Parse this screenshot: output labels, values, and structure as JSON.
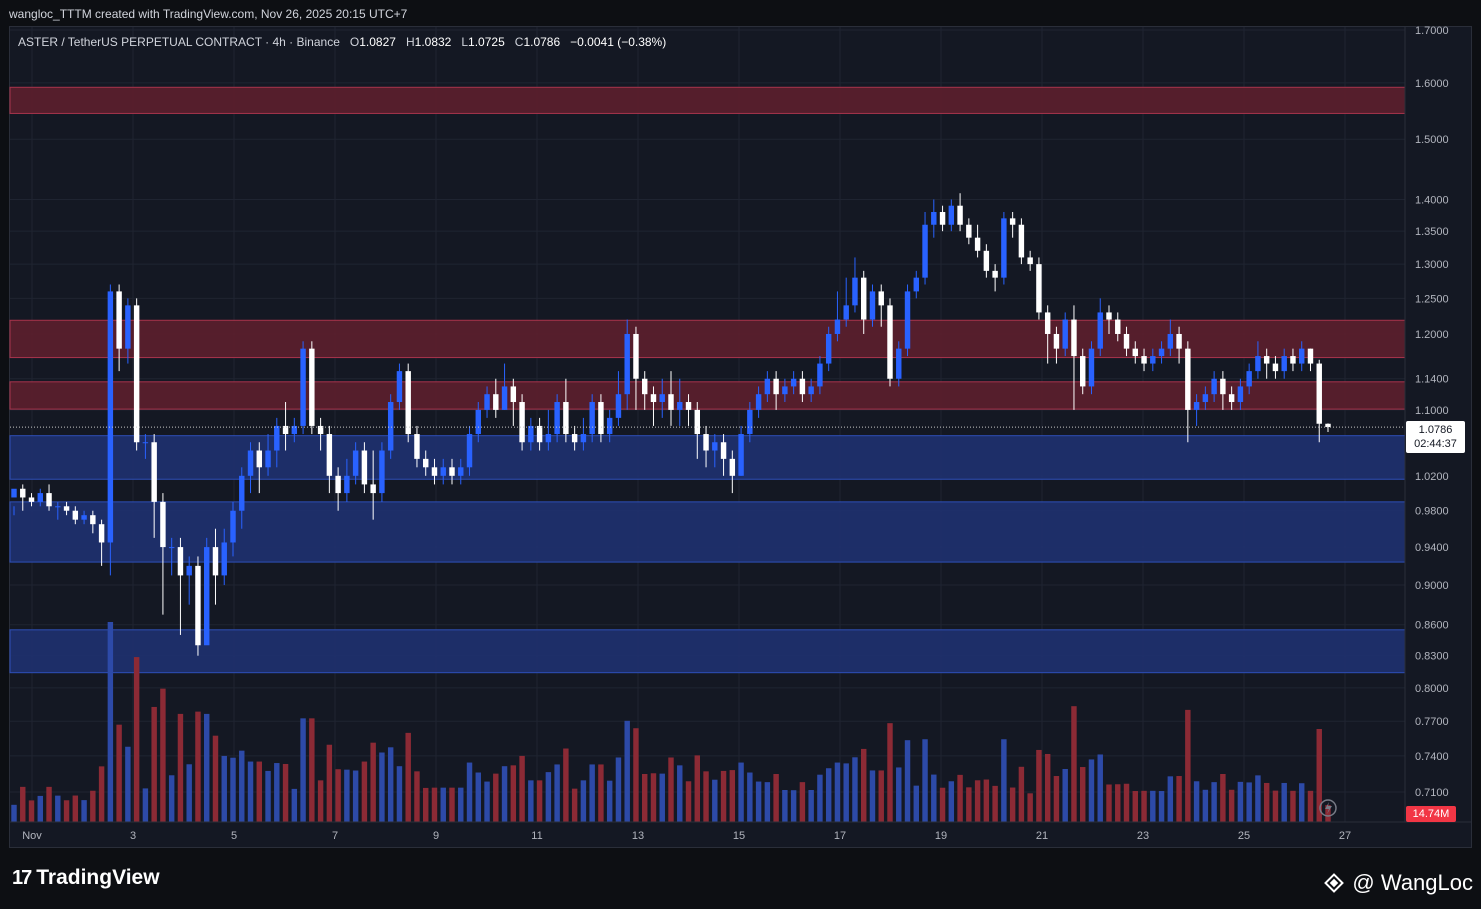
{
  "header": {
    "attribution": "wangloc_TTTM created with TradingView.com, Nov 26, 2025 20:15 UTC+7"
  },
  "legend": {
    "symbol": "ASTER / TetherUS PERPETUAL CONTRACT · 4h · Binance",
    "o_label": "O",
    "o_value": "1.0827",
    "h_label": "H",
    "h_value": "1.0832",
    "l_label": "L",
    "l_value": "1.0725",
    "c_label": "C",
    "c_value": "1.0786",
    "change": "−0.0041 (−0.38%)"
  },
  "price_tag": {
    "price": "1.0786",
    "countdown": "02:44:37"
  },
  "volume_tag": "14.74M",
  "footer": {
    "brand": "TradingView",
    "author": "@ WangLoc"
  },
  "colors": {
    "background": "#141823",
    "bull": "#2962ff",
    "bear": "#ffffff",
    "resistance_zone": "#5c1f2e",
    "support_zone": "#1e3170",
    "volume_bull": "#2d4aa8",
    "volume_bear": "#8c2a35"
  },
  "chart_data": {
    "type": "candlestick",
    "timeframe": "4h",
    "y_ticks": [
      "1.7000",
      "1.6000",
      "1.5000",
      "1.4000",
      "1.3500",
      "1.3000",
      "1.2500",
      "1.2000",
      "1.1400",
      "1.1000",
      "1.0200",
      "0.9800",
      "0.9400",
      "0.9000",
      "0.8600",
      "0.8300",
      "0.8000",
      "0.7700",
      "0.7400",
      "0.7100"
    ],
    "x_ticks": [
      "Nov",
      "3",
      "5",
      "7",
      "9",
      "11",
      "13",
      "15",
      "17",
      "19",
      "21",
      "23",
      "25",
      "27"
    ],
    "y_scale": "log",
    "last_price": 1.0786,
    "zones": [
      {
        "kind": "resistance",
        "low": 1.545,
        "high": 1.592
      },
      {
        "kind": "resistance",
        "low": 1.168,
        "high": 1.219
      },
      {
        "kind": "resistance",
        "low": 1.101,
        "high": 1.136
      },
      {
        "kind": "support",
        "low": 1.016,
        "high": 1.068
      },
      {
        "kind": "support",
        "low": 0.924,
        "high": 0.99
      },
      {
        "kind": "support",
        "low": 0.814,
        "high": 0.855
      }
    ],
    "candles": [
      [
        0.995,
        1.005,
        0.985,
        0.975
      ],
      [
        1.005,
        0.995,
        1.01,
        0.98
      ],
      [
        0.995,
        0.99,
        1.0,
        0.985
      ],
      [
        0.99,
        1.0,
        1.005,
        0.985
      ],
      [
        1.0,
        0.985,
        1.01,
        0.98
      ],
      [
        0.985,
        0.985,
        0.99,
        0.97
      ],
      [
        0.985,
        0.98,
        0.99,
        0.975
      ],
      [
        0.98,
        0.97,
        0.985,
        0.965
      ],
      [
        0.97,
        0.975,
        0.98,
        0.965
      ],
      [
        0.975,
        0.965,
        0.98,
        0.955
      ],
      [
        0.965,
        0.945,
        0.97,
        0.92
      ],
      [
        0.945,
        1.26,
        1.27,
        0.91
      ],
      [
        1.26,
        1.18,
        1.27,
        1.15
      ],
      [
        1.18,
        1.24,
        1.25,
        1.16
      ],
      [
        1.24,
        1.06,
        1.25,
        1.05
      ],
      [
        1.06,
        1.06,
        1.07,
        1.04
      ],
      [
        1.06,
        0.99,
        1.07,
        0.95
      ],
      [
        0.99,
        0.94,
        1.0,
        0.87
      ],
      [
        0.94,
        0.94,
        0.95,
        0.91
      ],
      [
        0.94,
        0.91,
        0.95,
        0.85
      ],
      [
        0.91,
        0.92,
        0.93,
        0.88
      ],
      [
        0.92,
        0.84,
        0.93,
        0.83
      ],
      [
        0.84,
        0.94,
        0.95,
        0.85
      ],
      [
        0.94,
        0.91,
        0.96,
        0.88
      ],
      [
        0.91,
        0.945,
        0.96,
        0.9
      ],
      [
        0.945,
        0.98,
        0.99,
        0.93
      ],
      [
        0.98,
        1.02,
        1.03,
        0.96
      ],
      [
        1.02,
        1.05,
        1.06,
        1.0
      ],
      [
        1.05,
        1.03,
        1.06,
        1.0
      ],
      [
        1.03,
        1.05,
        1.07,
        1.02
      ],
      [
        1.05,
        1.08,
        1.09,
        1.03
      ],
      [
        1.08,
        1.07,
        1.11,
        1.05
      ],
      [
        1.07,
        1.08,
        1.09,
        1.06
      ],
      [
        1.08,
        1.18,
        1.19,
        1.07
      ],
      [
        1.18,
        1.08,
        1.19,
        1.07
      ],
      [
        1.08,
        1.07,
        1.09,
        1.05
      ],
      [
        1.07,
        1.02,
        1.08,
        1.0
      ],
      [
        1.02,
        1.0,
        1.03,
        0.98
      ],
      [
        1.0,
        1.02,
        1.04,
        0.99
      ],
      [
        1.02,
        1.05,
        1.06,
        1.01
      ],
      [
        1.05,
        1.01,
        1.06,
        1.0
      ],
      [
        1.01,
        1.0,
        1.05,
        0.97
      ],
      [
        1.0,
        1.05,
        1.06,
        0.99
      ],
      [
        1.05,
        1.11,
        1.12,
        1.04
      ],
      [
        1.11,
        1.15,
        1.16,
        1.1
      ],
      [
        1.15,
        1.07,
        1.16,
        1.06
      ],
      [
        1.07,
        1.04,
        1.08,
        1.03
      ],
      [
        1.04,
        1.03,
        1.05,
        1.02
      ],
      [
        1.03,
        1.02,
        1.04,
        1.01
      ],
      [
        1.02,
        1.03,
        1.04,
        1.01
      ],
      [
        1.03,
        1.02,
        1.04,
        1.01
      ],
      [
        1.02,
        1.03,
        1.04,
        1.01
      ],
      [
        1.03,
        1.07,
        1.08,
        1.02
      ],
      [
        1.07,
        1.1,
        1.11,
        1.06
      ],
      [
        1.1,
        1.12,
        1.13,
        1.09
      ],
      [
        1.12,
        1.1,
        1.14,
        1.09
      ],
      [
        1.1,
        1.13,
        1.16,
        1.1
      ],
      [
        1.13,
        1.11,
        1.14,
        1.08
      ],
      [
        1.11,
        1.06,
        1.12,
        1.05
      ],
      [
        1.06,
        1.08,
        1.09,
        1.05
      ],
      [
        1.08,
        1.06,
        1.09,
        1.05
      ],
      [
        1.06,
        1.07,
        1.1,
        1.05
      ],
      [
        1.07,
        1.11,
        1.12,
        1.06
      ],
      [
        1.11,
        1.07,
        1.14,
        1.06
      ],
      [
        1.07,
        1.06,
        1.08,
        1.05
      ],
      [
        1.06,
        1.07,
        1.09,
        1.05
      ],
      [
        1.07,
        1.11,
        1.12,
        1.06
      ],
      [
        1.11,
        1.07,
        1.12,
        1.06
      ],
      [
        1.07,
        1.09,
        1.1,
        1.06
      ],
      [
        1.09,
        1.12,
        1.15,
        1.08
      ],
      [
        1.12,
        1.2,
        1.22,
        1.1
      ],
      [
        1.2,
        1.14,
        1.21,
        1.1
      ],
      [
        1.14,
        1.12,
        1.15,
        1.1
      ],
      [
        1.12,
        1.11,
        1.13,
        1.08
      ],
      [
        1.11,
        1.12,
        1.14,
        1.09
      ],
      [
        1.12,
        1.1,
        1.15,
        1.08
      ],
      [
        1.1,
        1.11,
        1.14,
        1.08
      ],
      [
        1.11,
        1.1,
        1.12,
        1.08
      ],
      [
        1.1,
        1.07,
        1.11,
        1.04
      ],
      [
        1.07,
        1.05,
        1.08,
        1.03
      ],
      [
        1.05,
        1.06,
        1.07,
        1.03
      ],
      [
        1.06,
        1.04,
        1.07,
        1.02
      ],
      [
        1.04,
        1.02,
        1.05,
        1.0
      ],
      [
        1.02,
        1.07,
        1.08,
        1.02
      ],
      [
        1.07,
        1.1,
        1.11,
        1.06
      ],
      [
        1.1,
        1.12,
        1.13,
        1.09
      ],
      [
        1.12,
        1.14,
        1.15,
        1.11
      ],
      [
        1.14,
        1.12,
        1.15,
        1.1
      ],
      [
        1.12,
        1.13,
        1.14,
        1.11
      ],
      [
        1.13,
        1.14,
        1.15,
        1.12
      ],
      [
        1.14,
        1.12,
        1.15,
        1.11
      ],
      [
        1.12,
        1.13,
        1.14,
        1.11
      ],
      [
        1.13,
        1.16,
        1.17,
        1.12
      ],
      [
        1.16,
        1.2,
        1.21,
        1.15
      ],
      [
        1.2,
        1.22,
        1.26,
        1.19
      ],
      [
        1.22,
        1.24,
        1.28,
        1.21
      ],
      [
        1.24,
        1.28,
        1.31,
        1.23
      ],
      [
        1.28,
        1.22,
        1.29,
        1.2
      ],
      [
        1.22,
        1.26,
        1.27,
        1.21
      ],
      [
        1.26,
        1.24,
        1.27,
        1.21
      ],
      [
        1.24,
        1.14,
        1.25,
        1.13
      ],
      [
        1.14,
        1.18,
        1.19,
        1.13
      ],
      [
        1.18,
        1.26,
        1.27,
        1.17
      ],
      [
        1.26,
        1.28,
        1.29,
        1.25
      ],
      [
        1.28,
        1.36,
        1.38,
        1.27
      ],
      [
        1.36,
        1.38,
        1.4,
        1.34
      ],
      [
        1.38,
        1.36,
        1.39,
        1.35
      ],
      [
        1.36,
        1.39,
        1.4,
        1.35
      ],
      [
        1.39,
        1.36,
        1.41,
        1.35
      ],
      [
        1.36,
        1.34,
        1.37,
        1.33
      ],
      [
        1.34,
        1.32,
        1.36,
        1.31
      ],
      [
        1.32,
        1.29,
        1.33,
        1.28
      ],
      [
        1.29,
        1.28,
        1.3,
        1.26
      ],
      [
        1.28,
        1.37,
        1.38,
        1.27
      ],
      [
        1.37,
        1.36,
        1.38,
        1.34
      ],
      [
        1.36,
        1.31,
        1.37,
        1.3
      ],
      [
        1.31,
        1.3,
        1.32,
        1.29
      ],
      [
        1.3,
        1.23,
        1.31,
        1.22
      ],
      [
        1.23,
        1.2,
        1.24,
        1.16
      ],
      [
        1.2,
        1.18,
        1.21,
        1.16
      ],
      [
        1.18,
        1.22,
        1.23,
        1.17
      ],
      [
        1.22,
        1.17,
        1.24,
        1.1
      ],
      [
        1.17,
        1.13,
        1.18,
        1.12
      ],
      [
        1.13,
        1.18,
        1.19,
        1.12
      ],
      [
        1.18,
        1.23,
        1.25,
        1.17
      ],
      [
        1.23,
        1.22,
        1.24,
        1.2
      ],
      [
        1.22,
        1.2,
        1.23,
        1.19
      ],
      [
        1.2,
        1.18,
        1.21,
        1.17
      ],
      [
        1.18,
        1.17,
        1.19,
        1.16
      ],
      [
        1.17,
        1.16,
        1.18,
        1.15
      ],
      [
        1.16,
        1.17,
        1.18,
        1.15
      ],
      [
        1.17,
        1.18,
        1.19,
        1.16
      ],
      [
        1.18,
        1.2,
        1.22,
        1.17
      ],
      [
        1.2,
        1.18,
        1.21,
        1.16
      ],
      [
        1.18,
        1.1,
        1.19,
        1.06
      ],
      [
        1.1,
        1.11,
        1.12,
        1.08
      ],
      [
        1.11,
        1.12,
        1.13,
        1.1
      ],
      [
        1.12,
        1.14,
        1.15,
        1.11
      ],
      [
        1.14,
        1.12,
        1.15,
        1.1
      ],
      [
        1.12,
        1.11,
        1.13,
        1.1
      ],
      [
        1.11,
        1.13,
        1.14,
        1.1
      ],
      [
        1.13,
        1.15,
        1.16,
        1.12
      ],
      [
        1.15,
        1.17,
        1.19,
        1.14
      ],
      [
        1.17,
        1.16,
        1.18,
        1.14
      ],
      [
        1.16,
        1.15,
        1.17,
        1.14
      ],
      [
        1.15,
        1.17,
        1.18,
        1.14
      ],
      [
        1.17,
        1.16,
        1.18,
        1.15
      ],
      [
        1.16,
        1.18,
        1.19,
        1.15
      ],
      [
        1.18,
        1.16,
        1.18,
        1.15
      ],
      [
        1.16,
        1.0827,
        1.165,
        1.06
      ],
      [
        1.0827,
        1.0786,
        1.0832,
        1.0725
      ]
    ],
    "volume_label": "14.74M"
  }
}
